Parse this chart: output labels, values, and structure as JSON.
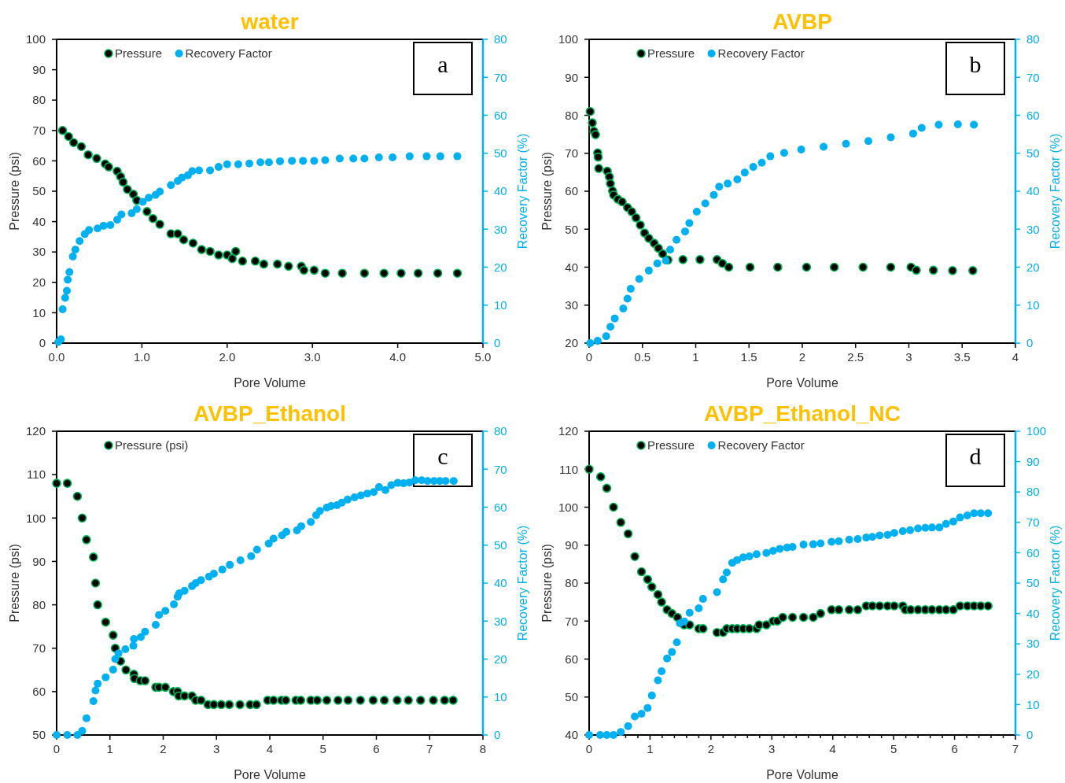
{
  "chart_data": [
    {
      "type": "scatter",
      "title": "water",
      "xlabel": "Pore Volume",
      "ylabel": "Pressure (psi)",
      "y2label": "Recovery Factor (%)",
      "xlim": [
        0,
        5
      ],
      "xticks": [
        {
          "value": 0,
          "label": "0.0"
        },
        {
          "value": 1,
          "label": "1.0"
        },
        {
          "value": 2,
          "label": "2.0"
        },
        {
          "value": 3,
          "label": "3.0"
        },
        {
          "value": 4,
          "label": "4.0"
        },
        {
          "value": 5,
          "label": "5.0"
        }
      ],
      "ylim": [
        0,
        100
      ],
      "yticks": [
        0,
        10,
        20,
        30,
        40,
        50,
        60,
        70,
        80,
        90,
        100
      ],
      "y2lim": [
        0,
        80
      ],
      "y2ticks": [
        0,
        10,
        20,
        30,
        40,
        50,
        60,
        70,
        80
      ],
      "legend": "top left",
      "marker": "circle",
      "annotations": [
        "a"
      ],
      "series": [
        {
          "name": "Pressure",
          "color": "#000000",
          "x": [
            0.07,
            0.14,
            0.2,
            0.29,
            0.37,
            0.47,
            0.57,
            0.61,
            0.71,
            0.75,
            0.78,
            0.83,
            0.9,
            0.94,
            1.06,
            1.13,
            1.21,
            1.34,
            1.42,
            1.49,
            1.6,
            1.7,
            1.8,
            1.9,
            2.0,
            2.06,
            2.1,
            2.18,
            2.33,
            2.43,
            2.59,
            2.72,
            2.87,
            2.9,
            3.02,
            3.15,
            3.35,
            3.61,
            3.84,
            4.04,
            4.24,
            4.47,
            4.7
          ],
          "values": [
            70,
            68,
            66,
            64.7,
            62,
            60.8,
            59,
            58,
            56.6,
            54.8,
            53,
            50.6,
            49,
            47,
            43.3,
            41,
            39.1,
            36,
            36,
            34,
            32.9,
            30.8,
            30.2,
            29,
            29,
            27.8,
            30.2,
            27,
            27,
            26,
            26,
            25.3,
            25.3,
            24,
            24,
            23,
            23,
            23,
            23,
            23,
            23,
            23,
            23
          ]
        },
        {
          "name": "Recovery Factor",
          "color": "#00b0f0",
          "axis": "y2",
          "x": [
            0.02,
            0.05,
            0.07,
            0.1,
            0.12,
            0.13,
            0.15,
            0.19,
            0.22,
            0.27,
            0.33,
            0.38,
            0.48,
            0.55,
            0.63,
            0.71,
            0.76,
            0.88,
            0.94,
            1.01,
            1.08,
            1.16,
            1.21,
            1.34,
            1.42,
            1.47,
            1.54,
            1.59,
            1.67,
            1.8,
            1.9,
            2.0,
            2.13,
            2.26,
            2.39,
            2.49,
            2.62,
            2.76,
            2.89,
            3.02,
            3.15,
            3.32,
            3.48,
            3.61,
            3.78,
            3.94,
            4.14,
            4.34,
            4.5,
            4.7
          ],
          "values": [
            0.3,
            1,
            8.9,
            11.9,
            13.8,
            16.7,
            18.7,
            22.8,
            24.6,
            26.9,
            28.7,
            29.8,
            30.2,
            30.9,
            31.1,
            32.5,
            33.9,
            34.2,
            35.3,
            37.2,
            38.3,
            39,
            39.9,
            41.6,
            42.7,
            43.6,
            44.2,
            45.3,
            45.5,
            45.5,
            46.4,
            47.1,
            47.1,
            47.3,
            47.6,
            47.6,
            47.9,
            48,
            48,
            48,
            48.2,
            48.6,
            48.6,
            48.6,
            48.9,
            48.9,
            49.2,
            49.2,
            49.2,
            49.2
          ]
        }
      ]
    },
    {
      "type": "scatter",
      "title": "AVBP",
      "xlabel": "Pore Volume",
      "ylabel": "Pressure (psi)",
      "y2label": "Recovery Factor (%)",
      "xlim": [
        0,
        4
      ],
      "xticks": [
        0,
        0.5,
        1,
        1.5,
        2,
        2.5,
        3,
        3.5,
        4
      ],
      "ylim": [
        20,
        100
      ],
      "yticks": [
        20,
        30,
        40,
        50,
        60,
        70,
        80,
        90,
        100
      ],
      "y2lim": [
        0,
        80
      ],
      "y2ticks": [
        0,
        10,
        20,
        30,
        40,
        50,
        60,
        70,
        80
      ],
      "legend": "top left",
      "marker": "circle",
      "annotations": [
        "b"
      ],
      "series": [
        {
          "name": "Pressure",
          "color": "#000000",
          "x": [
            0.01,
            0.03,
            0.045,
            0.06,
            0.08,
            0.085,
            0.09,
            0.17,
            0.19,
            0.2,
            0.22,
            0.23,
            0.27,
            0.31,
            0.36,
            0.4,
            0.44,
            0.48,
            0.52,
            0.56,
            0.61,
            0.65,
            0.69,
            0.74,
            0.88,
            1.04,
            1.2,
            1.25,
            1.31,
            1.51,
            1.77,
            2.04,
            2.3,
            2.57,
            2.83,
            3.02,
            3.07,
            3.23,
            3.41,
            3.6
          ],
          "values": [
            81,
            78,
            75.8,
            74.9,
            70.1,
            69,
            66,
            65.3,
            63.8,
            62,
            60.1,
            59,
            57.9,
            57.2,
            55.7,
            54.6,
            53,
            51.1,
            49,
            47.6,
            46.3,
            45,
            43.5,
            41.9,
            42,
            42,
            42,
            41,
            40,
            40,
            40,
            40,
            40,
            40,
            40,
            40,
            39.2,
            39.2,
            39.1,
            39.1
          ]
        },
        {
          "name": "Recovery Factor",
          "color": "#00b0f0",
          "axis": "y2",
          "x": [
            0.01,
            0.08,
            0.16,
            0.2,
            0.24,
            0.32,
            0.36,
            0.39,
            0.47,
            0.56,
            0.64,
            0.72,
            0.76,
            0.82,
            0.9,
            0.94,
            1.01,
            1.09,
            1.17,
            1.22,
            1.3,
            1.39,
            1.46,
            1.54,
            1.62,
            1.7,
            1.83,
            1.99,
            2.2,
            2.41,
            2.62,
            2.83,
            3.04,
            3.12,
            3.28,
            3.46,
            3.61
          ],
          "values": [
            0,
            0.6,
            1.8,
            4.3,
            6.5,
            9.1,
            11.7,
            14.3,
            16.9,
            19.1,
            21,
            21.7,
            24.6,
            27.2,
            29.4,
            31.6,
            34.6,
            36.8,
            39,
            41.2,
            42,
            43.1,
            44.9,
            46.4,
            47.5,
            49.2,
            50.1,
            51,
            51.7,
            52.5,
            53.2,
            54.2,
            55.2,
            56.7,
            57.5,
            57.6,
            57.5
          ]
        }
      ]
    },
    {
      "type": "scatter",
      "title": "AVBP_Ethanol",
      "xlabel": "Pore Volume",
      "ylabel": "Pressure (psi)",
      "y2label": "Recovery Factor (%)",
      "xlim": [
        0,
        8
      ],
      "xticks": [
        0,
        1,
        2,
        3,
        4,
        5,
        6,
        7,
        8
      ],
      "ylim": [
        50,
        120
      ],
      "yticks": [
        50,
        60,
        70,
        80,
        90,
        100,
        110,
        120
      ],
      "y2lim": [
        0,
        80
      ],
      "y2ticks": [
        0,
        10,
        20,
        30,
        40,
        50,
        60,
        70,
        80
      ],
      "legend": "top left",
      "marker": "circle",
      "annotations": [
        "c"
      ],
      "series": [
        {
          "name": "Pressure (psi)",
          "color": "#000000",
          "x": [
            0,
            0.2,
            0.39,
            0.48,
            0.56,
            0.69,
            0.73,
            0.77,
            0.92,
            1.06,
            1.1,
            1.2,
            1.3,
            1.45,
            1.46,
            1.57,
            1.66,
            1.86,
            1.92,
            2.04,
            2.19,
            2.27,
            2.29,
            2.4,
            2.54,
            2.61,
            2.71,
            2.84,
            2.95,
            3.09,
            3.24,
            3.44,
            3.63,
            3.75,
            3.96,
            4.07,
            4.22,
            4.3,
            4.49,
            4.58,
            4.77,
            4.89,
            5.07,
            5.28,
            5.47,
            5.7,
            5.94,
            6.15,
            6.39,
            6.6,
            6.83,
            7.07,
            7.28,
            7.44
          ],
          "values": [
            108,
            108,
            105,
            100,
            95,
            91,
            85,
            80,
            76,
            73,
            70,
            67,
            65,
            64,
            63,
            62.5,
            62.5,
            61,
            61,
            61,
            60,
            60,
            59,
            59,
            59,
            58,
            58,
            57,
            57,
            57,
            57,
            57,
            57,
            57,
            58,
            58,
            58,
            58,
            58,
            58,
            58,
            58,
            58,
            58,
            58,
            58,
            58,
            58,
            58,
            58,
            58,
            58,
            58,
            58
          ]
        },
        {
          "color": "#00b0f0",
          "axis": "y2",
          "x": [
            0,
            0.2,
            0.39,
            0.48,
            0.56,
            0.69,
            0.73,
            0.77,
            0.92,
            1.06,
            1.1,
            1.16,
            1.29,
            1.44,
            1.45,
            1.58,
            1.66,
            1.86,
            1.92,
            2.04,
            2.2,
            2.27,
            2.3,
            2.4,
            2.54,
            2.61,
            2.71,
            2.86,
            2.95,
            3.11,
            3.25,
            3.45,
            3.65,
            3.76,
            3.98,
            4.07,
            4.23,
            4.31,
            4.51,
            4.59,
            4.77,
            4.87,
            4.94,
            5.07,
            5.15,
            5.26,
            5.35,
            5.46,
            5.59,
            5.71,
            5.83,
            5.95,
            6.05,
            6.17,
            6.28,
            6.4,
            6.51,
            6.62,
            6.73,
            6.85,
            6.96,
            7.08,
            7.19,
            7.3,
            7.45
          ],
          "values": [
            0,
            0,
            0,
            1.1,
            4.4,
            8.9,
            11.7,
            13.5,
            15.2,
            17.2,
            20,
            21.5,
            22.6,
            23.5,
            25.3,
            25.8,
            27.2,
            29,
            31.6,
            32.7,
            34.4,
            36.4,
            37.3,
            38,
            39.2,
            40,
            40.8,
            41.7,
            42.5,
            43.6,
            44.8,
            46,
            47.1,
            48.8,
            50.4,
            51.7,
            52.6,
            53.5,
            53.9,
            55,
            56.1,
            57.9,
            59,
            59.9,
            60.3,
            60.5,
            61.2,
            62,
            62.6,
            63.1,
            63.6,
            64,
            65.3,
            64.5,
            65.8,
            66.4,
            66.3,
            66.5,
            67.1,
            67.1,
            66.9,
            66.9,
            66.9,
            66.9,
            66.9
          ]
        }
      ]
    },
    {
      "type": "scatter",
      "title": "AVBP_Ethanol_NC",
      "xlabel": "Pore Volume",
      "ylabel": "Pressure (psi)",
      "y2label": "Recovery Factor (%)",
      "xlim": [
        0,
        7
      ],
      "xticks": [
        0,
        {
          "value": 0.2,
          "label": null
        },
        {
          "value": 0.4,
          "label": null
        },
        {
          "value": 0.6,
          "label": null
        },
        {
          "value": 0.8,
          "label": null
        },
        1,
        {
          "value": 1.2,
          "label": null
        },
        {
          "value": 1.4,
          "label": null
        },
        {
          "value": 1.6,
          "label": null
        },
        {
          "value": 1.8,
          "label": null
        },
        2,
        {
          "value": 2.2,
          "label": null
        },
        {
          "value": 2.4,
          "label": null
        },
        {
          "value": 2.6,
          "label": null
        },
        {
          "value": 2.8,
          "label": null
        },
        3,
        {
          "value": 3.2,
          "label": null
        },
        {
          "value": 3.4,
          "label": null
        },
        {
          "value": 3.6,
          "label": null
        },
        {
          "value": 3.8,
          "label": null
        },
        4,
        {
          "value": 4.2,
          "label": null
        },
        {
          "value": 4.4,
          "label": null
        },
        {
          "value": 4.6,
          "label": null
        },
        {
          "value": 4.8,
          "label": null
        },
        5,
        {
          "value": 5.2,
          "label": null
        },
        {
          "value": 5.4,
          "label": null
        },
        {
          "value": 5.6,
          "label": null
        },
        {
          "value": 5.8,
          "label": null
        },
        6,
        {
          "value": 6.2,
          "label": null
        },
        {
          "value": 6.4,
          "label": null
        },
        {
          "value": 6.6,
          "label": null
        },
        {
          "value": 6.8,
          "label": null
        },
        7
      ],
      "ylim": [
        40,
        120
      ],
      "yticks": [
        40,
        50,
        60,
        70,
        80,
        90,
        100,
        110,
        120
      ],
      "y2lim": [
        0,
        100
      ],
      "y2ticks": [
        0,
        10,
        20,
        30,
        40,
        50,
        60,
        70,
        80,
        90,
        100
      ],
      "legend": "top left",
      "marker": "circle",
      "annotations": [
        "d"
      ],
      "series": [
        {
          "name": "Pressure",
          "color": "#000000",
          "x": [
            0,
            0.19,
            0.29,
            0.4,
            0.52,
            0.64,
            0.75,
            0.86,
            0.96,
            1.03,
            1.13,
            1.19,
            1.28,
            1.36,
            1.45,
            1.56,
            1.65,
            1.8,
            1.87,
            2.1,
            2.2,
            2.26,
            2.35,
            2.43,
            2.53,
            2.63,
            2.75,
            2.79,
            2.91,
            3.02,
            3.09,
            3.18,
            3.34,
            3.52,
            3.68,
            3.8,
            3.98,
            4.1,
            4.27,
            4.41,
            4.55,
            4.65,
            4.77,
            4.9,
            5.01,
            5.15,
            5.19,
            5.28,
            5.4,
            5.52,
            5.63,
            5.75,
            5.86,
            5.98,
            6.09,
            6.21,
            6.32,
            6.43,
            6.55
          ],
          "values": [
            110,
            108,
            105,
            100,
            96,
            93,
            87,
            83,
            81,
            79,
            77,
            75,
            73,
            72,
            71,
            69,
            69,
            68,
            68,
            67,
            67,
            68,
            68,
            68,
            68,
            68,
            68,
            69,
            69,
            70,
            70,
            71,
            71,
            71,
            71,
            72,
            73,
            73,
            73,
            73,
            74,
            74,
            74,
            74,
            74,
            74,
            73,
            73,
            73,
            73,
            73,
            73,
            73,
            73,
            74,
            74,
            74,
            74,
            74
          ]
        },
        {
          "name": "Recovery Factor",
          "color": "#00b0f0",
          "axis": "y2",
          "x": [
            0,
            0.18,
            0.29,
            0.4,
            0.52,
            0.64,
            0.75,
            0.86,
            0.96,
            1.03,
            1.13,
            1.19,
            1.28,
            1.36,
            1.44,
            1.49,
            1.56,
            1.65,
            1.8,
            1.87,
            2.1,
            2.2,
            2.26,
            2.35,
            2.43,
            2.53,
            2.63,
            2.75,
            2.91,
            3.02,
            3.13,
            3.25,
            3.34,
            3.52,
            3.68,
            3.8,
            3.98,
            4.1,
            4.27,
            4.41,
            4.55,
            4.65,
            4.77,
            4.9,
            5.01,
            5.15,
            5.27,
            5.4,
            5.52,
            5.63,
            5.75,
            5.86,
            5.98,
            6.09,
            6.21,
            6.32,
            6.43,
            6.55
          ],
          "values": [
            0,
            0,
            0,
            0,
            1,
            2.9,
            6.1,
            7,
            8.9,
            13,
            18,
            21,
            25.2,
            27.3,
            30.5,
            36.8,
            37.4,
            40.2,
            41.7,
            44.8,
            47,
            51.2,
            53.5,
            56.7,
            57.6,
            58.5,
            58.8,
            59.5,
            59.9,
            60.6,
            61.3,
            61.7,
            61.9,
            62.7,
            62.8,
            63.1,
            63.6,
            63.8,
            64.3,
            64.5,
            65,
            65.2,
            65.7,
            65.9,
            66.5,
            67.1,
            67.4,
            68,
            68.2,
            68.3,
            68.3,
            69.5,
            70.3,
            71.6,
            72.3,
            73,
            73,
            73
          ]
        }
      ]
    }
  ]
}
